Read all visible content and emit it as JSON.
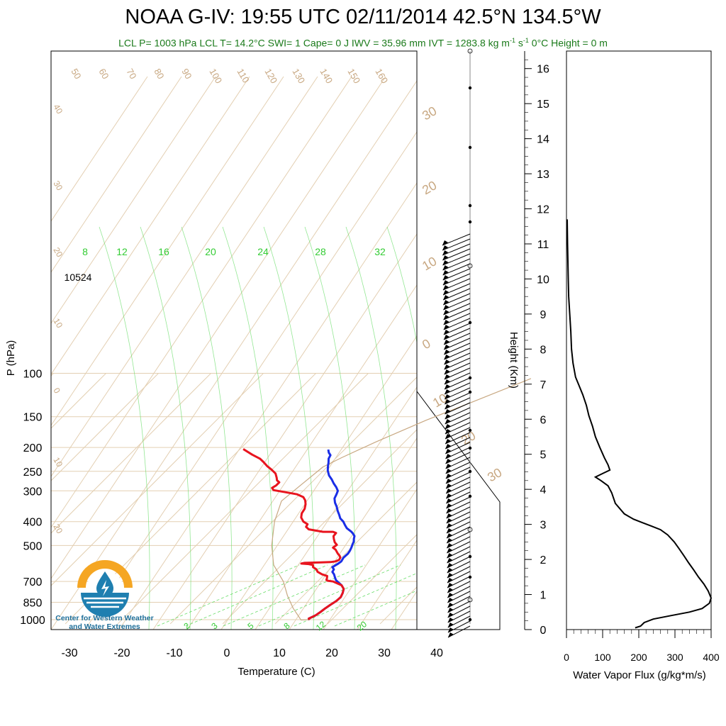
{
  "header": {
    "title": "NOAA G-IV: 19:55 UTC 02/11/2014  42.5°N 134.5°W",
    "subtitle_parts": [
      "LCL P= 1003 hPa  LCL T= 14.2°C  SWI= 1  Cape= 0 J  IWV = 35.96 mm  IVT = 1283.8 kg m",
      "-1",
      " s",
      "-1",
      "  0°C Height = 0 m"
    ]
  },
  "annotations": {
    "height_label": "10524",
    "logo_text_line1": "Center for Western Weather",
    "logo_text_line2": "and Water Extremes"
  },
  "colors": {
    "temperature": "#e8141e",
    "dewpoint": "#1a2ee6",
    "isotherm": "#e3cfb2",
    "mixing_ratio": "#66dd66",
    "dry_adiabat_label": "#c8a882",
    "subtitle": "#1a7a1a",
    "logo_orange": "#f5a623",
    "logo_blue": "#1f7fb0"
  },
  "chart_data": [
    {
      "type": "line",
      "name": "skew-t",
      "xlabel": "Temperature (C)",
      "ylabel": "P (hPa)",
      "xlim": [
        -33,
        52
      ],
      "ylim_pressure": [
        1040,
        100
      ],
      "x_ticks": [
        -30,
        -20,
        -10,
        0,
        10,
        20,
        30,
        40
      ],
      "y_ticks": [
        100,
        150,
        200,
        250,
        300,
        400,
        500,
        700,
        850,
        1000
      ],
      "mixing_ratio_top_labels": [
        "8",
        "12",
        "16",
        "20",
        "24",
        "28",
        "32"
      ],
      "mixing_ratio_bottom_labels": [
        "2",
        "3",
        "5",
        "8",
        "12",
        "20"
      ],
      "adiabat_top_labels": [
        "50",
        "60",
        "70",
        "80",
        "90",
        "100",
        "110",
        "120",
        "130",
        "140",
        "150",
        "160"
      ],
      "adiabat_left_labels": [
        "40",
        "30",
        "20",
        "10",
        "0",
        "10",
        "20"
      ],
      "adiabat_right_labels": [
        "30",
        "20",
        "10",
        "0",
        "10",
        "20",
        "30"
      ],
      "series": [
        {
          "name": "Temperature",
          "points": [
            [
              15.8,
              1000
            ],
            [
              15.4,
              990
            ],
            [
              16.1,
              960
            ],
            [
              16.4,
              930
            ],
            [
              16.6,
              900
            ],
            [
              16.9,
              870
            ],
            [
              17.3,
              840
            ],
            [
              17.4,
              810
            ],
            [
              17.0,
              780
            ],
            [
              16.4,
              750
            ],
            [
              15.3,
              725
            ],
            [
              13.0,
              700
            ],
            [
              11.8,
              695
            ],
            [
              11.4,
              690
            ],
            [
              11.2,
              680
            ],
            [
              10.8,
              665
            ],
            [
              9.5,
              655
            ],
            [
              8.2,
              640
            ],
            [
              7.5,
              625
            ],
            [
              6.4,
              612
            ],
            [
              6.0,
              600
            ],
            [
              5.0,
              595
            ],
            [
              3.5,
              592
            ],
            [
              4.0,
              588
            ],
            [
              7.0,
              586
            ],
            [
              8.8,
              584
            ],
            [
              9.6,
              580
            ],
            [
              10.0,
              572
            ],
            [
              9.8,
              560
            ],
            [
              9.3,
              550
            ],
            [
              8.6,
              540
            ],
            [
              8.0,
              530
            ],
            [
              7.4,
              520
            ],
            [
              6.5,
              510
            ],
            [
              6.7,
              497
            ],
            [
              5.8,
              485
            ],
            [
              5.0,
              470
            ],
            [
              4.4,
              458
            ],
            [
              4.3,
              445
            ],
            [
              3.5,
              440
            ],
            [
              1.6,
              440
            ],
            [
              -1.6,
              430
            ],
            [
              -2.6,
              420
            ],
            [
              -2.8,
              410
            ],
            [
              -4.1,
              400
            ],
            [
              -5.3,
              385
            ],
            [
              -6.0,
              370
            ],
            [
              -6.3,
              355
            ],
            [
              -7.0,
              340
            ],
            [
              -7.8,
              328
            ],
            [
              -8.8,
              318
            ],
            [
              -10.5,
              310
            ],
            [
              -13.5,
              303
            ],
            [
              -15.8,
              298
            ],
            [
              -16.5,
              292
            ],
            [
              -16.2,
              285
            ],
            [
              -16.2,
              277
            ],
            [
              -17.0,
              272
            ],
            [
              -17.6,
              265
            ],
            [
              -18.6,
              255
            ],
            [
              -20.1,
              246
            ],
            [
              -21.6,
              238
            ],
            [
              -23.1,
              229
            ],
            [
              -24.4,
              222
            ],
            [
              -26.6,
              214
            ],
            [
              -29.4,
              203
            ]
          ]
        },
        {
          "name": "Dewpoint",
          "points": [
            [
              15.8,
              1000
            ],
            [
              15.4,
              990
            ],
            [
              16.1,
              960
            ],
            [
              16.4,
              930
            ],
            [
              16.6,
              900
            ],
            [
              16.9,
              870
            ],
            [
              17.3,
              840
            ],
            [
              17.4,
              810
            ],
            [
              17.0,
              780
            ],
            [
              16.4,
              750
            ],
            [
              15.3,
              725
            ],
            [
              13.8,
              700
            ],
            [
              13.2,
              690
            ],
            [
              12.4,
              670
            ],
            [
              11.8,
              655
            ],
            [
              11.0,
              640
            ],
            [
              10.8,
              625
            ],
            [
              10.1,
              612
            ],
            [
              10.5,
              595
            ],
            [
              10.7,
              580
            ],
            [
              10.4,
              560
            ],
            [
              10.5,
              540
            ],
            [
              10.3,
              525
            ],
            [
              10.0,
              510
            ],
            [
              9.6,
              495
            ],
            [
              9.3,
              482
            ],
            [
              8.8,
              470
            ],
            [
              8.4,
              458
            ],
            [
              7.6,
              447
            ],
            [
              7.0,
              440
            ],
            [
              5.4,
              425
            ],
            [
              4.4,
              412
            ],
            [
              3.5,
              400
            ],
            [
              2.3,
              388
            ],
            [
              1.4,
              375
            ],
            [
              0.4,
              362
            ],
            [
              -0.6,
              348
            ],
            [
              -1.7,
              335
            ],
            [
              -2.6,
              322
            ],
            [
              -3.0,
              310
            ],
            [
              -3.4,
              300
            ],
            [
              -4.4,
              290
            ],
            [
              -5.6,
              280
            ],
            [
              -6.7,
              270
            ],
            [
              -8.0,
              260
            ],
            [
              -9.2,
              248
            ],
            [
              -10.0,
              238
            ],
            [
              -10.6,
              230
            ],
            [
              -11.3,
              222
            ],
            [
              -11.6,
              215
            ],
            [
              -12.4,
              210
            ],
            [
              -13.1,
              204
            ]
          ]
        },
        {
          "name": "Parcel",
          "points": [
            [
              15.6,
              1000
            ],
            [
              14.2,
              1003
            ],
            [
              10.5,
              900
            ],
            [
              7.0,
              800
            ],
            [
              3.5,
              700
            ],
            [
              -1.5,
              600
            ],
            [
              -5.6,
              500
            ],
            [
              -9.6,
              400
            ],
            [
              -12.2,
              330
            ],
            [
              -11.5,
              280
            ],
            [
              -10.8,
              240
            ],
            [
              -9.0,
              220
            ],
            [
              -5.5,
              190
            ],
            [
              0.0,
              155
            ],
            [
              5.5,
              130
            ],
            [
              12.0,
              105
            ]
          ]
        }
      ]
    },
    {
      "type": "wind_barbs",
      "name": "wind-profile",
      "note_levels": "barbs from 1000 to 215 hPa"
    },
    {
      "type": "line",
      "name": "water-vapor-flux",
      "xlabel": "Water Vapor Flux (g/kg*m/s)",
      "ylabel": "Height (Km)",
      "xlim": [
        0,
        400
      ],
      "ylim": [
        0,
        16.5
      ],
      "x_ticks": [
        0,
        100,
        200,
        300,
        400
      ],
      "y_ticks": [
        0,
        1,
        2,
        3,
        4,
        5,
        6,
        7,
        8,
        9,
        10,
        11,
        12,
        13,
        14,
        15,
        16
      ],
      "series": [
        {
          "name": "Water Vapor Flux",
          "points": [
            [
              190,
              0.05
            ],
            [
              205,
              0.1
            ],
            [
              215,
              0.2
            ],
            [
              240,
              0.3
            ],
            [
              290,
              0.4
            ],
            [
              340,
              0.5
            ],
            [
              375,
              0.6
            ],
            [
              395,
              0.75
            ],
            [
              400,
              0.9
            ],
            [
              392,
              1.1
            ],
            [
              380,
              1.3
            ],
            [
              365,
              1.5
            ],
            [
              352,
              1.7
            ],
            [
              338,
              1.9
            ],
            [
              325,
              2.1
            ],
            [
              312,
              2.3
            ],
            [
              298,
              2.5
            ],
            [
              280,
              2.7
            ],
            [
              260,
              2.85
            ],
            [
              235,
              2.95
            ],
            [
              210,
              3.05
            ],
            [
              185,
              3.15
            ],
            [
              160,
              3.3
            ],
            [
              135,
              3.6
            ],
            [
              125,
              3.9
            ],
            [
              115,
              4.1
            ],
            [
              95,
              4.25
            ],
            [
              80,
              4.35
            ],
            [
              100,
              4.45
            ],
            [
              120,
              4.55
            ],
            [
              115,
              4.7
            ],
            [
              105,
              4.9
            ],
            [
              92,
              5.2
            ],
            [
              80,
              5.5
            ],
            [
              72,
              5.8
            ],
            [
              62,
              6.1
            ],
            [
              55,
              6.4
            ],
            [
              45,
              6.7
            ],
            [
              35,
              6.95
            ],
            [
              25,
              7.2
            ],
            [
              18,
              7.6
            ],
            [
              14,
              8.0
            ],
            [
              12,
              8.5
            ],
            [
              9,
              9.0
            ],
            [
              6,
              9.5
            ],
            [
              5,
              10.0
            ],
            [
              4,
              10.5
            ],
            [
              3,
              11.0
            ],
            [
              2,
              11.7
            ]
          ]
        }
      ]
    }
  ]
}
